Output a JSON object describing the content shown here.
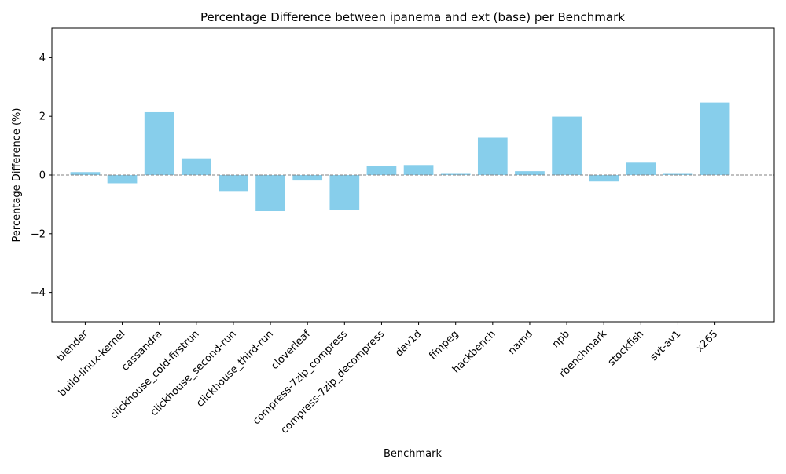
{
  "chart_data": {
    "type": "bar",
    "title": "Percentage Difference between ipanema and ext (base) per Benchmark",
    "xlabel": "Benchmark",
    "ylabel": "Percentage Difference (%)",
    "ylim": [
      -5,
      5
    ],
    "yticks": [
      -4,
      -2,
      0,
      2,
      4
    ],
    "ytick_labels": [
      "−4",
      "−2",
      "0",
      "2",
      "4"
    ],
    "grid": false,
    "zero_line": true,
    "bar_color": "#87CEEB",
    "zero_line_color": "#808080",
    "categories": [
      "blender",
      "build-linux-kernel",
      "cassandra",
      "clickhouse_cold-firstrun",
      "clickhouse_second-run",
      "clickhouse_third-run",
      "cloverleaf",
      "compress-7zip_compress",
      "compress-7zip_decompress",
      "dav1d",
      "ffmpeg",
      "hackbench",
      "namd",
      "npb",
      "rbenchmark",
      "stockfish",
      "svt-av1",
      "x265"
    ],
    "values": [
      0.1,
      -0.28,
      2.14,
      0.57,
      -0.57,
      -1.23,
      -0.19,
      -1.2,
      0.31,
      0.34,
      0.04,
      1.27,
      0.13,
      1.99,
      -0.22,
      0.42,
      0.04,
      2.47
    ]
  }
}
